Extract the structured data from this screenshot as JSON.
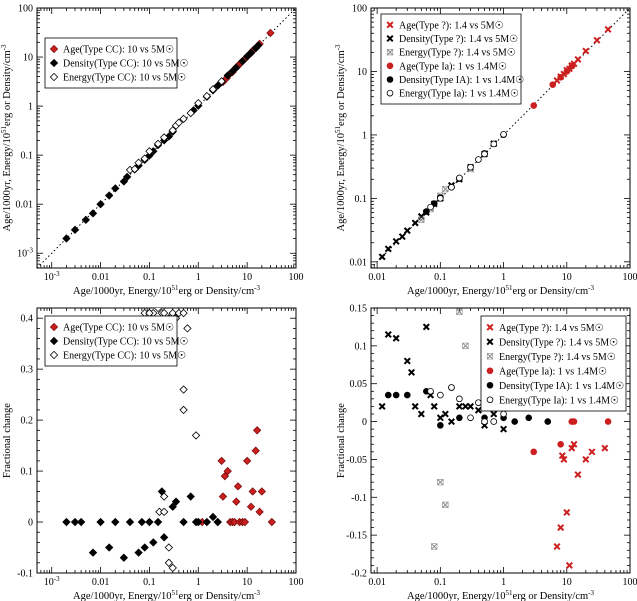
{
  "colors": {
    "red": "#cc1f1f",
    "black": "#000000",
    "open": "#ffffff",
    "gray": "#888888"
  },
  "chart_data": [
    {
      "id": "tl",
      "type": "scatter",
      "xscale": "log",
      "yscale": "log",
      "xlim": [
        0.0005,
        100
      ],
      "ylim": [
        0.0005,
        100
      ],
      "xticks": [
        {
          "v": 0.001,
          "label": "10",
          "sup": "-3"
        },
        {
          "v": 0.01,
          "label": "0.01"
        },
        {
          "v": 0.1,
          "label": "0.1"
        },
        {
          "v": 1,
          "label": "1"
        },
        {
          "v": 10,
          "label": "10"
        },
        {
          "v": 100,
          "label": "100"
        }
      ],
      "yticks": [
        {
          "v": 0.001,
          "label": "10",
          "sup": "-3"
        },
        {
          "v": 0.01,
          "label": "0.01"
        },
        {
          "v": 0.1,
          "label": "0.1"
        },
        {
          "v": 1,
          "label": "1"
        },
        {
          "v": 10,
          "label": "10"
        },
        {
          "v": 100,
          "label": "100"
        }
      ],
      "xlabel": {
        "pre": "Age/1000yr, Energy/10",
        "sup": "51",
        "post": "erg or Density/cm",
        "sup2": "-3"
      },
      "ylabel": {
        "pre": "Age/1000yr, Energy/10",
        "sup": "51",
        "post": "erg or Density/cm",
        "sup2": "-3"
      },
      "diagonal": true,
      "legend_position": "top-left",
      "legend": [
        {
          "marker": "diamond-red",
          "label": "Age(Type CC): 10 vs 5M☉"
        },
        {
          "marker": "diamond-black",
          "label": "Density(Type CC): 10 vs 5M☉"
        },
        {
          "marker": "diamond-open",
          "label": "Energy(Type CC): 10 vs 5M☉"
        }
      ],
      "series": [
        {
          "marker": "diamond-red",
          "x": [
            3.2,
            3.8,
            4.5,
            5,
            5.5,
            6,
            6.5,
            7,
            7.5,
            8,
            9,
            10,
            11,
            12,
            13,
            14,
            15,
            16,
            18,
            30
          ],
          "y": [
            3.1,
            3.7,
            4.6,
            4.9,
            5.6,
            6.2,
            6.6,
            7.2,
            7.7,
            8.2,
            9.1,
            10.2,
            11.3,
            12.1,
            13.5,
            14.6,
            15.2,
            16.4,
            18.6,
            31
          ]
        },
        {
          "marker": "diamond-black",
          "x": [
            0.002,
            0.003,
            0.005,
            0.007,
            0.01,
            0.015,
            0.02,
            0.03,
            0.035,
            0.05,
            0.06,
            0.08,
            0.1,
            0.12,
            0.15,
            0.2,
            0.25,
            0.3,
            0.8,
            1,
            1.5,
            2,
            2.5,
            3,
            4,
            5,
            6,
            8,
            10,
            12,
            15,
            17
          ],
          "y": [
            0.002,
            0.003,
            0.0048,
            0.0065,
            0.01,
            0.015,
            0.021,
            0.029,
            0.036,
            0.051,
            0.061,
            0.08,
            0.098,
            0.12,
            0.16,
            0.2,
            0.24,
            0.3,
            0.82,
            1.02,
            1.55,
            2.1,
            2.6,
            3.1,
            4.2,
            5.1,
            6.1,
            8.2,
            10.3,
            12.2,
            15.1,
            17.3
          ]
        },
        {
          "marker": "diamond-open",
          "x": [
            0.04,
            0.05,
            0.06,
            0.08,
            0.1,
            0.15,
            0.2,
            0.3,
            0.35,
            0.4,
            0.5,
            0.7,
            1,
            1.5,
            2,
            3
          ],
          "y": [
            0.05,
            0.052,
            0.07,
            0.085,
            0.12,
            0.17,
            0.23,
            0.32,
            0.4,
            0.46,
            0.55,
            0.72,
            1.15,
            1.6,
            2.2,
            3.2
          ]
        }
      ]
    },
    {
      "id": "tr",
      "type": "scatter",
      "xscale": "log",
      "yscale": "log",
      "xlim": [
        0.008,
        100
      ],
      "ylim": [
        0.008,
        100
      ],
      "xticks": [
        {
          "v": 0.01,
          "label": "0.01"
        },
        {
          "v": 0.1,
          "label": "0.1"
        },
        {
          "v": 1,
          "label": "1"
        },
        {
          "v": 10,
          "label": "10"
        },
        {
          "v": 100,
          "label": "100"
        }
      ],
      "yticks": [
        {
          "v": 0.01,
          "label": "0.01"
        },
        {
          "v": 0.1,
          "label": "0.1"
        },
        {
          "v": 1,
          "label": "1"
        },
        {
          "v": 10,
          "label": "10"
        },
        {
          "v": 100,
          "label": "100"
        }
      ],
      "xlabel": {
        "pre": "Age/1000yr, Energy/10",
        "sup": "51",
        "post": "erg or Density/cm",
        "sup2": "-3"
      },
      "ylabel": {
        "pre": "Age/1000yr, Energy/10",
        "sup": "51",
        "post": "erg or Density/cm",
        "sup2": "-3"
      },
      "diagonal": true,
      "legend_position": "top-left",
      "legend": [
        {
          "marker": "x-red",
          "label": "Age(Type ?): 1.4 vs 5M☉"
        },
        {
          "marker": "x-black",
          "label": "Density(Type ?): 1.4 vs 5M☉"
        },
        {
          "marker": "x-open",
          "label": "Energy(Type ?): 1.4 vs 5M☉"
        },
        {
          "marker": "circle-red",
          "label": "Age(Type Ia): 1 vs 1.4M☉"
        },
        {
          "marker": "circle-black",
          "label": "Density(Type IA): 1 vs 1.4M☉"
        },
        {
          "marker": "circle-open",
          "label": "Energy(Type Ia): 1 vs 1.4M☉"
        }
      ],
      "series": [
        {
          "marker": "x-red",
          "x": [
            7,
            8,
            9,
            10,
            11,
            12,
            13,
            15,
            20,
            30,
            45
          ],
          "y": [
            7.2,
            8.3,
            9.1,
            10.5,
            11,
            12.4,
            13.2,
            15.5,
            21,
            31,
            46
          ]
        },
        {
          "marker": "x-black",
          "x": [
            0.012,
            0.015,
            0.02,
            0.025,
            0.03,
            0.04,
            0.05,
            0.06,
            0.08,
            0.1,
            0.15,
            0.2,
            0.3,
            0.5,
            0.7
          ],
          "y": [
            0.012,
            0.016,
            0.021,
            0.025,
            0.031,
            0.041,
            0.052,
            0.06,
            0.082,
            0.1,
            0.16,
            0.2,
            0.31,
            0.5,
            0.73
          ]
        },
        {
          "marker": "x-open",
          "x": [
            0.05,
            0.07,
            0.1,
            0.12,
            0.3
          ],
          "y": [
            0.046,
            0.068,
            0.11,
            0.14,
            0.29
          ]
        },
        {
          "marker": "circle-red",
          "x": [
            3,
            6,
            8,
            10,
            12
          ],
          "y": [
            2.9,
            6.2,
            8.1,
            10,
            12.1
          ]
        },
        {
          "marker": "circle-black",
          "x": [
            0.06,
            0.08,
            0.1,
            0.15,
            0.2,
            0.5,
            1
          ],
          "y": [
            0.062,
            0.083,
            0.103,
            0.15,
            0.205,
            0.51,
            1.01
          ]
        },
        {
          "marker": "circle-open",
          "x": [
            0.07,
            0.1,
            0.15,
            0.2,
            0.3,
            0.4,
            0.5,
            0.7,
            1
          ],
          "y": [
            0.073,
            0.1,
            0.15,
            0.21,
            0.31,
            0.41,
            0.5,
            0.72,
            1.02
          ]
        }
      ]
    },
    {
      "id": "bl",
      "type": "scatter",
      "xscale": "log",
      "yscale": "linear",
      "xlim": [
        0.0005,
        100
      ],
      "ylim": [
        -0.1,
        0.42
      ],
      "xticks": [
        {
          "v": 0.001,
          "label": "10",
          "sup": "-3"
        },
        {
          "v": 0.01,
          "label": "0.01"
        },
        {
          "v": 0.1,
          "label": "0.1"
        },
        {
          "v": 1,
          "label": "1"
        },
        {
          "v": 10,
          "label": "10"
        },
        {
          "v": 100,
          "label": "100"
        }
      ],
      "yticks": [
        {
          "v": -0.1,
          "label": "-0.1"
        },
        {
          "v": 0,
          "label": "0"
        },
        {
          "v": 0.1,
          "label": "0.1"
        },
        {
          "v": 0.2,
          "label": "0.2"
        },
        {
          "v": 0.3,
          "label": "0.3"
        },
        {
          "v": 0.4,
          "label": "0.4"
        }
      ],
      "xlabel": {
        "pre": "Age/1000yr, Energy/10",
        "sup": "51",
        "post": "erg or Density/cm",
        "sup2": "-3"
      },
      "ylabel": {
        "pre": "Fractional change"
      },
      "diagonal": false,
      "legend_position": "top-left",
      "legend": [
        {
          "marker": "diamond-red",
          "label": "Age(Type CC): 10 vs 5M☉"
        },
        {
          "marker": "diamond-black",
          "label": "Density(Type CC): 10 vs 5M☉"
        },
        {
          "marker": "diamond-open",
          "label": "Energy(Type CC): 10 vs 5M☉"
        }
      ],
      "series": [
        {
          "marker": "diamond-red",
          "x": [
            1.2,
            2.5,
            3,
            3.2,
            3.5,
            4,
            4.5,
            5,
            5.5,
            6,
            6.5,
            7,
            8,
            9,
            10,
            12,
            13,
            15,
            16,
            18,
            20,
            32
          ],
          "y": [
            0,
            0,
            0.12,
            0.05,
            0.09,
            0.1,
            0,
            0,
            0,
            0.04,
            0.07,
            0,
            0,
            0,
            0.12,
            0.03,
            0.06,
            0.14,
            0.18,
            0.02,
            0.06,
            0
          ]
        },
        {
          "marker": "diamond-black",
          "x": [
            0.002,
            0.003,
            0.004,
            0.007,
            0.01,
            0.015,
            0.02,
            0.03,
            0.04,
            0.06,
            0.07,
            0.08,
            0.1,
            0.12,
            0.15,
            0.18,
            0.2,
            0.3,
            0.35,
            0.5,
            0.7,
            0.9,
            1,
            1.5,
            2,
            2.5
          ],
          "y": [
            0,
            0,
            0,
            -0.06,
            0,
            -0.05,
            0,
            -0.07,
            0,
            -0.06,
            0,
            -0.05,
            0,
            -0.04,
            0,
            0.06,
            -0.03,
            0.03,
            0.04,
            0,
            0.05,
            0,
            0,
            0,
            0.01,
            0
          ]
        },
        {
          "marker": "diamond-open",
          "x": [
            0.08,
            0.1,
            0.12,
            0.15,
            0.18,
            0.2,
            0.25,
            0.3,
            0.35,
            0.4,
            0.5,
            0.6,
            0.1,
            0.16,
            0.2,
            0.25,
            0.3,
            0.5,
            0.5,
            0.9,
            0.2,
            0.25
          ],
          "y": [
            0.41,
            0.41,
            0.41,
            0.42,
            0.41,
            0.41,
            0.4,
            0.41,
            0.4,
            0.41,
            0.41,
            0.38,
            0.41,
            0.02,
            0.05,
            -0.08,
            -0.09,
            0.22,
            0.26,
            0.17,
            0.02,
            -0.05
          ]
        }
      ]
    },
    {
      "id": "br",
      "type": "scatter",
      "xscale": "log",
      "yscale": "linear",
      "xlim": [
        0.008,
        100
      ],
      "ylim": [
        -0.2,
        0.15
      ],
      "xticks": [
        {
          "v": 0.01,
          "label": "0.01"
        },
        {
          "v": 0.1,
          "label": "0.1"
        },
        {
          "v": 1,
          "label": "1"
        },
        {
          "v": 10,
          "label": "10"
        },
        {
          "v": 100,
          "label": "100"
        }
      ],
      "yticks": [
        {
          "v": -0.2,
          "label": "-0.2"
        },
        {
          "v": -0.15,
          "label": "-0.15"
        },
        {
          "v": -0.1,
          "label": "-0.1"
        },
        {
          "v": -0.05,
          "label": "-0.05"
        },
        {
          "v": 0,
          "label": "0"
        },
        {
          "v": 0.05,
          "label": "0.05"
        },
        {
          "v": 0.1,
          "label": "0.1"
        },
        {
          "v": 0.15,
          "label": "0.15"
        }
      ],
      "xlabel": {
        "pre": "Age/1000yr, Energy/10",
        "sup": "51",
        "post": "erg or Density/cm",
        "sup2": "-3"
      },
      "ylabel": {
        "pre": "Fractional change"
      },
      "diagonal": false,
      "legend_position": "top-right",
      "legend": [
        {
          "marker": "x-red",
          "label": "Age(Type ?): 1.4 vs 5M☉"
        },
        {
          "marker": "x-black",
          "label": "Density(Type ?): 1.4 vs 5M☉"
        },
        {
          "marker": "x-open",
          "label": "Energy(Type ?): 1.4 vs 5M☉"
        },
        {
          "marker": "circle-red",
          "label": "Age(Type Ia): 1 vs 1.4M☉"
        },
        {
          "marker": "circle-black",
          "label": "Density(Type IA): 1 vs 1.4M☉"
        },
        {
          "marker": "circle-open",
          "label": "Energy(Type Ia): 1 vs 1.4M☉"
        }
      ],
      "series": [
        {
          "marker": "x-red",
          "x": [
            7,
            8,
            8.5,
            9,
            10,
            11,
            12,
            13,
            15,
            20,
            25,
            40
          ],
          "y": [
            -0.165,
            -0.14,
            -0.045,
            -0.05,
            -0.12,
            -0.19,
            -0.035,
            -0.03,
            -0.07,
            -0.05,
            -0.04,
            -0.035
          ]
        },
        {
          "marker": "x-black",
          "x": [
            0.012,
            0.015,
            0.02,
            0.03,
            0.035,
            0.04,
            0.05,
            0.06,
            0.07,
            0.08,
            0.1,
            0.12,
            0.15,
            0.2,
            0.25,
            0.3,
            0.4,
            0.5,
            0.7,
            1
          ],
          "y": [
            0.02,
            0.115,
            0.11,
            0.08,
            0.065,
            0.02,
            0.01,
            0.125,
            0.035,
            0.02,
            0.005,
            0.01,
            0,
            0.02,
            0.02,
            0.02,
            0.015,
            -0.005,
            0.01,
            -0.01
          ]
        },
        {
          "marker": "x-open",
          "x": [
            0.08,
            0.1,
            0.12,
            0.2,
            0.25
          ],
          "y": [
            -0.165,
            -0.08,
            -0.11,
            0.145,
            0.1
          ]
        },
        {
          "marker": "circle-red",
          "x": [
            3,
            8,
            12,
            13,
            45
          ],
          "y": [
            -0.04,
            -0.03,
            0,
            0,
            0
          ]
        },
        {
          "marker": "circle-black",
          "x": [
            0.015,
            0.02,
            0.03,
            0.06,
            0.1,
            0.15,
            0.2,
            0.5,
            1,
            1.5,
            2.5,
            5
          ],
          "y": [
            0.035,
            0.035,
            0.035,
            0.04,
            -0.005,
            0.045,
            0.005,
            0.005,
            0.005,
            0,
            0.005,
            0
          ]
        },
        {
          "marker": "circle-open",
          "x": [
            0.07,
            0.1,
            0.15,
            0.2,
            0.3,
            0.4,
            0.5,
            0.7,
            1
          ],
          "y": [
            0.04,
            0.035,
            0.045,
            0.03,
            0.005,
            0.025,
            0,
            0,
            0.01
          ]
        }
      ]
    }
  ]
}
